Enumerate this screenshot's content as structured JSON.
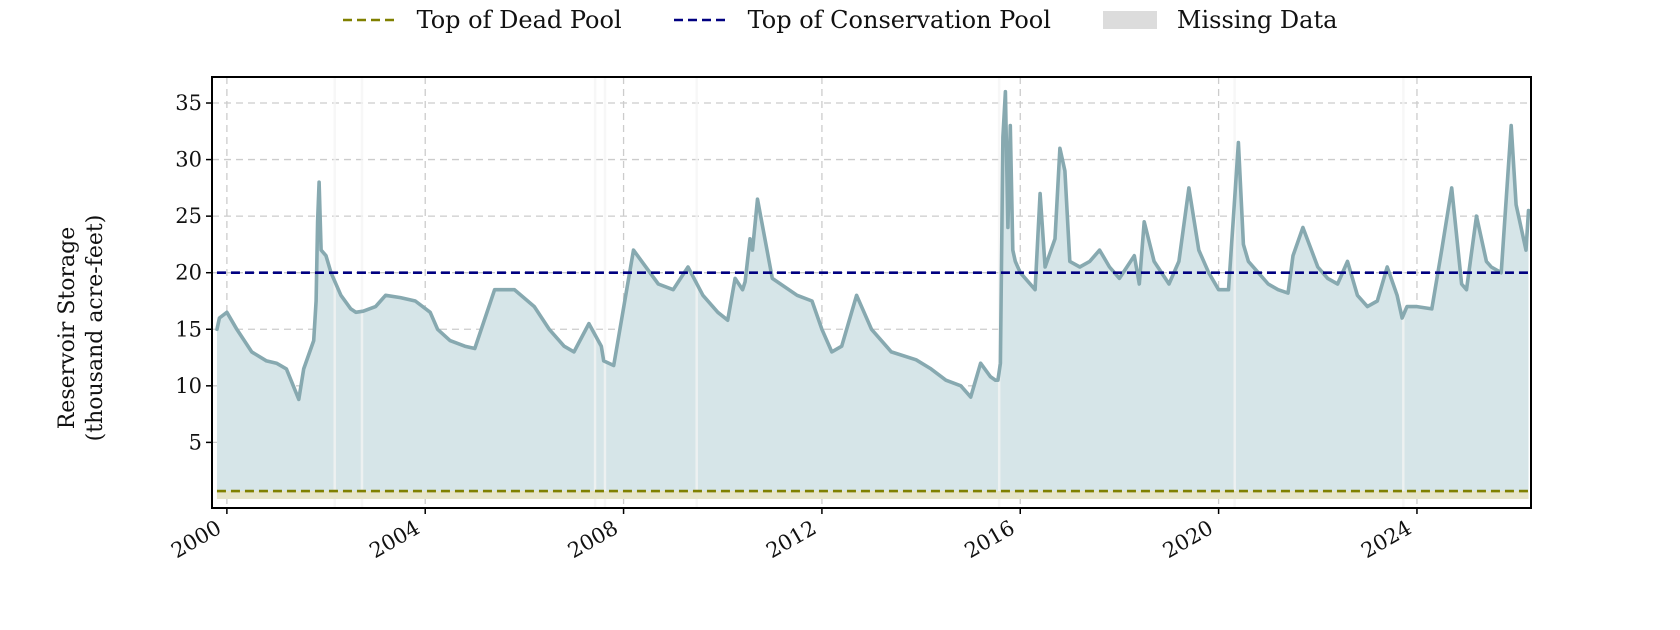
{
  "legend": {
    "dead_pool": "Top of Dead Pool",
    "conservation_pool": "Top of Conservation Pool",
    "missing": "Missing Data"
  },
  "axes": {
    "ylabel_line1": "Reservoir Storage",
    "ylabel_line2": "(thousand acre-feet)"
  },
  "colors": {
    "storage_line": "#87a9b0",
    "storage_fill": "#d6e5e8",
    "dead_pool": "#808000",
    "conservation_pool": "#000080",
    "missing": "#dcdcdc",
    "grid": "#cccccc"
  },
  "chart_data": {
    "type": "area",
    "xlim": [
      1999.7,
      2026.3
    ],
    "ylim": [
      -0.8,
      37.3
    ],
    "xticks": [
      2000,
      2004,
      2008,
      2012,
      2016,
      2020,
      2024
    ],
    "yticks": [
      5,
      10,
      15,
      20,
      25,
      30,
      35
    ],
    "grid": true,
    "legend_position": "top-center",
    "dead_pool_level": 0.7,
    "conservation_pool_level": 20.0,
    "missing_periods": [
      [
        2002.15,
        2002.2
      ],
      [
        2002.7,
        2002.75
      ],
      [
        2007.4,
        2007.45
      ],
      [
        2007.6,
        2007.65
      ],
      [
        2009.45,
        2009.5
      ],
      [
        2015.55,
        2015.6
      ],
      [
        2020.3,
        2020.35
      ],
      [
        2023.7,
        2023.75
      ]
    ],
    "series": [
      {
        "name": "Reservoir Storage",
        "x": [
          1999.8,
          1999.85,
          2000.0,
          2000.2,
          2000.5,
          2000.8,
          2001.0,
          2001.2,
          2001.45,
          2001.55,
          2001.75,
          2001.8,
          2001.83,
          2001.86,
          2001.9,
          2002.0,
          2002.1,
          2002.3,
          2002.5,
          2002.6,
          2002.75,
          2003.0,
          2003.2,
          2003.5,
          2003.8,
          2004.1,
          2004.25,
          2004.5,
          2004.8,
          2005.0,
          2005.4,
          2005.8,
          2006.2,
          2006.5,
          2006.8,
          2007.0,
          2007.3,
          2007.55,
          2007.6,
          2007.8,
          2008.2,
          2008.7,
          2009.0,
          2009.3,
          2009.6,
          2009.9,
          2010.1,
          2010.25,
          2010.4,
          2010.45,
          2010.55,
          2010.6,
          2010.7,
          2011.0,
          2011.5,
          2011.8,
          2012.0,
          2012.2,
          2012.4,
          2012.7,
          2013.0,
          2013.4,
          2013.9,
          2014.2,
          2014.5,
          2014.8,
          2015.0,
          2015.2,
          2015.4,
          2015.5,
          2015.55,
          2015.6,
          2015.65,
          2015.7,
          2015.75,
          2015.8,
          2015.85,
          2015.9,
          2016.0,
          2016.3,
          2016.4,
          2016.5,
          2016.7,
          2016.8,
          2016.9,
          2017.0,
          2017.2,
          2017.4,
          2017.6,
          2017.8,
          2018.0,
          2018.3,
          2018.4,
          2018.5,
          2018.7,
          2019.0,
          2019.2,
          2019.4,
          2019.6,
          2019.8,
          2020.0,
          2020.2,
          2020.3,
          2020.4,
          2020.5,
          2020.6,
          2020.8,
          2021.0,
          2021.2,
          2021.4,
          2021.5,
          2021.7,
          2022.0,
          2022.2,
          2022.4,
          2022.6,
          2022.8,
          2023.0,
          2023.2,
          2023.4,
          2023.6,
          2023.7,
          2023.8,
          2024.0,
          2024.3,
          2024.5,
          2024.7,
          2024.9,
          2025.0,
          2025.2,
          2025.4,
          2025.5,
          2025.7,
          2025.9,
          2026.0,
          2026.2,
          2026.25
        ],
        "values": [
          15.0,
          16.0,
          16.5,
          15.0,
          13.0,
          12.2,
          12.0,
          11.5,
          8.8,
          11.5,
          14.0,
          17.5,
          24.5,
          28.0,
          22.0,
          21.5,
          20.0,
          18.0,
          16.8,
          16.5,
          16.6,
          17.0,
          18.0,
          17.8,
          17.5,
          16.5,
          15.0,
          14.0,
          13.5,
          13.3,
          18.5,
          18.5,
          17.0,
          15.0,
          13.5,
          13.0,
          15.5,
          13.5,
          12.2,
          11.8,
          22.0,
          19.0,
          18.5,
          20.5,
          18.0,
          16.5,
          15.8,
          19.5,
          18.5,
          19.2,
          23.0,
          22.0,
          26.5,
          19.5,
          18.0,
          17.5,
          15.0,
          13.0,
          13.5,
          18.0,
          15.0,
          13.0,
          12.3,
          11.5,
          10.5,
          10.0,
          9.0,
          12.0,
          10.8,
          10.5,
          10.5,
          12.0,
          32.0,
          36.0,
          24.0,
          33.0,
          22.0,
          21.0,
          20.0,
          18.5,
          27.0,
          20.5,
          23.0,
          31.0,
          29.0,
          21.0,
          20.5,
          21.0,
          22.0,
          20.5,
          19.5,
          21.5,
          19.0,
          24.5,
          21.0,
          19.0,
          21.0,
          27.5,
          22.0,
          20.0,
          18.5,
          18.5,
          25.0,
          31.5,
          22.5,
          21.0,
          20.0,
          19.0,
          18.5,
          18.2,
          21.5,
          24.0,
          20.5,
          19.5,
          19.0,
          21.0,
          18.0,
          17.0,
          17.5,
          20.5,
          18.0,
          16.0,
          17.0,
          17.0,
          16.8,
          22.0,
          27.5,
          19.0,
          18.5,
          25.0,
          21.0,
          20.5,
          20.0,
          33.0,
          26.0,
          22.0,
          25.5
        ]
      }
    ]
  }
}
